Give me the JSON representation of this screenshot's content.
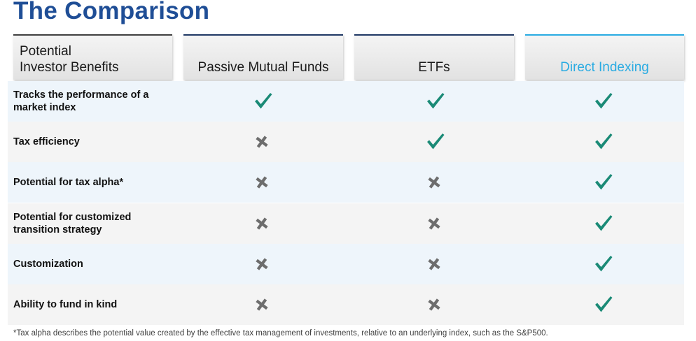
{
  "title": "The Comparison",
  "header": {
    "benefit_label_line1": "Potential",
    "benefit_label_line2": "Investor Benefits",
    "columns": [
      "Passive Mutual Funds",
      "ETFs",
      "Direct Indexing"
    ]
  },
  "chart_data": {
    "type": "table",
    "columns": [
      "Potential Investor Benefits",
      "Passive Mutual Funds",
      "ETFs",
      "Direct Indexing"
    ],
    "rows": [
      {
        "benefit_line1": "Tracks the performance of a",
        "benefit_line2": "market index",
        "values": [
          true,
          true,
          true
        ]
      },
      {
        "benefit_line1": "Tax efficiency",
        "benefit_line2": "",
        "values": [
          false,
          true,
          true
        ]
      },
      {
        "benefit_line1": "Potential for tax alpha*",
        "benefit_line2": "",
        "values": [
          false,
          false,
          true
        ]
      },
      {
        "benefit_line1": "Potential for customized",
        "benefit_line2": "transition strategy",
        "values": [
          false,
          false,
          true
        ]
      },
      {
        "benefit_line1": "Customization",
        "benefit_line2": "",
        "values": [
          false,
          false,
          true
        ]
      },
      {
        "benefit_line1": "Ability to fund in kind",
        "benefit_line2": "",
        "values": [
          false,
          false,
          true
        ]
      }
    ]
  },
  "footnote": "*Tax alpha describes the potential value created by the effective tax management of investments, relative to an underlying index, such as the S&P500.",
  "colors": {
    "title": "#1f4e96",
    "check": "#1a8a76",
    "cross": "#6d6d6d",
    "direct_indexing_accent": "#29abe2"
  },
  "icons": {
    "yes": "check-icon",
    "no": "cross-icon"
  }
}
